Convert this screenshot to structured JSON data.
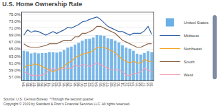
{
  "chart_data": {
    "type": "bar",
    "title": "U.S. Home Ownership Rate",
    "annotations": [
      "Source: U.S. Census Bureau  *Through the second quarter.\nCopyright © 2019 by Standard & Poor’s Financial Services LLC. All rights reserved."
    ],
    "categories": [
      "'84",
      "'85",
      "'86",
      "'87",
      "'88",
      "'89",
      "'90",
      "'91",
      "'92",
      "'93",
      "'94",
      "'95",
      "'96",
      "'97",
      "'98",
      "'99",
      "'00",
      "'01",
      "'02",
      "'03",
      "'04",
      "'05",
      "'06",
      "'07",
      "'08",
      "'09",
      "'10",
      "'11",
      "'12",
      "'13",
      "'14",
      "'15",
      "'16",
      "'17",
      "'18",
      "'19"
    ],
    "series": [
      {
        "name": "United States",
        "type": "bar",
        "color": "#6AAFE6",
        "values": [
          64.5,
          64.3,
          63.8,
          64.0,
          63.8,
          63.9,
          63.9,
          64.1,
          64.1,
          64.0,
          64.2,
          64.7,
          65.4,
          65.7,
          66.3,
          66.8,
          67.4,
          67.8,
          67.9,
          68.3,
          69.0,
          68.9,
          68.8,
          68.1,
          67.8,
          67.4,
          66.9,
          66.1,
          65.4,
          65.1,
          64.5,
          63.7,
          63.4,
          63.9,
          64.4,
          64.1
        ]
      },
      {
        "name": "Midwest",
        "type": "line",
        "color": "#2E5FA3",
        "values": [
          69.0,
          70.5,
          69.8,
          70.2,
          70.0,
          69.5,
          69.0,
          69.5,
          70.0,
          69.5,
          70.0,
          70.5,
          71.2,
          71.0,
          71.5,
          72.0,
          72.8,
          73.0,
          73.5,
          73.8,
          74.2,
          73.5,
          72.5,
          71.5,
          71.0,
          70.5,
          70.0,
          70.0,
          69.5,
          69.0,
          69.5,
          69.5,
          69.5,
          70.2,
          71.5,
          69.2
        ]
      },
      {
        "name": "Northeast",
        "type": "line",
        "color": "#F5A623",
        "values": [
          59.5,
          60.5,
          60.2,
          60.8,
          60.5,
          60.0,
          59.5,
          59.0,
          58.5,
          59.0,
          59.5,
          60.0,
          61.0,
          61.5,
          62.5,
          63.0,
          63.5,
          63.8,
          64.0,
          64.5,
          65.5,
          65.5,
          65.5,
          65.0,
          64.5,
          64.0,
          63.0,
          62.0,
          61.5,
          61.0,
          61.5,
          61.0,
          61.0,
          62.0,
          61.5,
          61.5
        ]
      },
      {
        "name": "South",
        "type": "line",
        "color": "#8B6347",
        "values": [
          66.5,
          65.8,
          65.5,
          65.5,
          65.5,
          65.8,
          66.0,
          66.5,
          66.5,
          66.5,
          67.0,
          67.5,
          67.5,
          67.5,
          68.5,
          68.5,
          69.5,
          69.5,
          70.0,
          70.5,
          71.5,
          71.5,
          71.0,
          70.5,
          70.0,
          69.5,
          68.5,
          67.5,
          67.0,
          66.5,
          66.0,
          65.5,
          65.5,
          66.0,
          66.5,
          66.5
        ]
      },
      {
        "name": "West",
        "type": "line",
        "color": "#F4A0B0",
        "values": [
          58.5,
          58.0,
          57.5,
          57.5,
          57.5,
          57.5,
          58.0,
          59.0,
          59.5,
          59.0,
          59.0,
          59.5,
          59.5,
          59.5,
          60.5,
          60.0,
          60.5,
          60.5,
          60.0,
          60.5,
          61.0,
          60.5,
          60.0,
          59.5,
          59.0,
          59.0,
          59.0,
          58.5,
          57.5,
          57.5,
          58.0,
          58.0,
          58.5,
          59.5,
          59.0,
          58.5
        ]
      }
    ],
    "ylim": [
      56.0,
      75.5
    ],
    "yticks": [
      {
        "value": 57.0,
        "label": "57.0%"
      },
      {
        "value": 59.0,
        "label": "59.0%"
      },
      {
        "value": 61.0,
        "label": "61.0%"
      },
      {
        "value": 63.0,
        "label": "63.0%"
      },
      {
        "value": 65.0,
        "label": "65.0%"
      },
      {
        "value": 67.0,
        "label": "67.0%"
      },
      {
        "value": 69.0,
        "label": "69.0%"
      },
      {
        "value": 71.0,
        "label": "71.0%"
      },
      {
        "value": 73.0,
        "label": "73.0%"
      },
      {
        "value": 75.0,
        "label": "75.0%"
      }
    ],
    "grid": true,
    "legend": "right"
  }
}
